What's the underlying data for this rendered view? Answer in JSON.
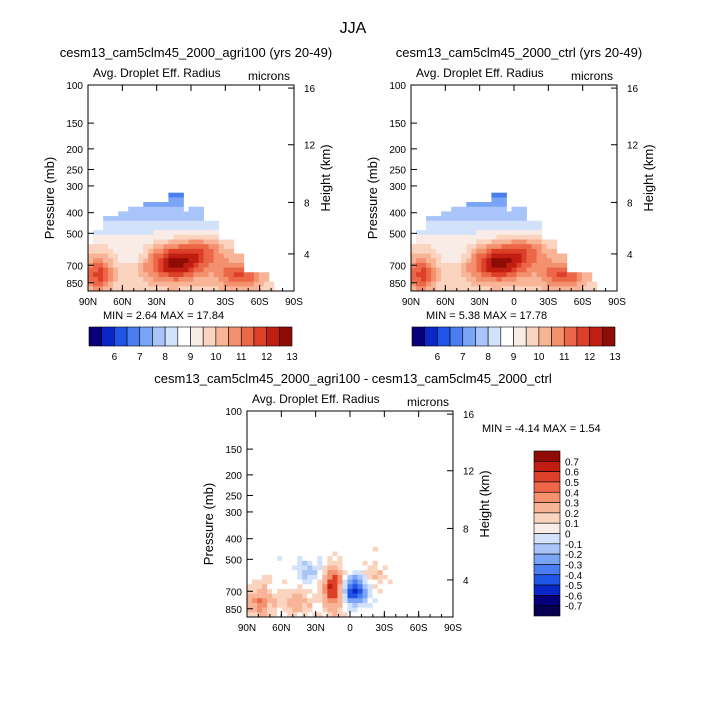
{
  "figure": {
    "title": "JJA"
  },
  "chart_data": [
    {
      "type": "heatmap",
      "title": "cesm13_cam5clm45_2000_agri100 (yrs 20-49)",
      "subtitle_left": "Avg. Droplet Eff. Radius",
      "subtitle_right": "microns",
      "ylabel": "Pressure (mb)",
      "ylabel_right": "Height (km)",
      "xticks": [
        "90N",
        "60N",
        "30N",
        "0",
        "30S",
        "60S",
        "90S"
      ],
      "yticks": [
        "100",
        "150",
        "200",
        "250",
        "300",
        "400",
        "500",
        "700",
        "850"
      ],
      "yticks_right": [
        "16",
        "12",
        "8",
        "4"
      ],
      "min_label": "MIN =",
      "min_value": "2.64",
      "max_label": "MAX =",
      "max_value": "17.84",
      "colorbar_labels": [
        "6",
        "7",
        "8",
        "9",
        "10",
        "11",
        "12",
        "13"
      ],
      "field": "positive"
    },
    {
      "type": "heatmap",
      "title": "cesm13_cam5clm45_2000_ctrl (yrs 20-49)",
      "subtitle_left": "Avg. Droplet Eff. Radius",
      "subtitle_right": "microns",
      "ylabel": "Pressure (mb)",
      "ylabel_right": "Height (km)",
      "xticks": [
        "90N",
        "60N",
        "30N",
        "0",
        "30S",
        "60S",
        "90S"
      ],
      "yticks": [
        "100",
        "150",
        "200",
        "250",
        "300",
        "400",
        "500",
        "700",
        "850"
      ],
      "yticks_right": [
        "16",
        "12",
        "8",
        "4"
      ],
      "min_label": "MIN =",
      "min_value": "5.38",
      "max_label": "MAX =",
      "max_value": "17.78",
      "colorbar_labels": [
        "6",
        "7",
        "8",
        "9",
        "10",
        "11",
        "12",
        "13"
      ],
      "field": "positive"
    },
    {
      "type": "heatmap",
      "title": "cesm13_cam5clm45_2000_agri100 - cesm13_cam5clm45_2000_ctrl",
      "subtitle_left": "Avg. Droplet Eff. Radius",
      "subtitle_right": "microns",
      "ylabel": "Pressure (mb)",
      "ylabel_right": "Height (km)",
      "xticks": [
        "90N",
        "60N",
        "30N",
        "0",
        "30S",
        "60S",
        "90S"
      ],
      "yticks": [
        "100",
        "150",
        "200",
        "250",
        "300",
        "400",
        "500",
        "700",
        "850"
      ],
      "yticks_right": [
        "16",
        "12",
        "8",
        "4"
      ],
      "min_label": "MIN =",
      "min_value": "-4.14",
      "max_label": "MAX =",
      "max_value": "1.54",
      "colorbar_labels": [
        "0.7",
        "0.6",
        "0.5",
        "0.4",
        "0.3",
        "0.2",
        "0.1",
        "0",
        "-0.1",
        "-0.2",
        "-0.3",
        "-0.4",
        "-0.5",
        "-0.6",
        "-0.7"
      ],
      "field": "difference"
    }
  ],
  "colors": {
    "diverging": [
      "#08007a",
      "#0a28c8",
      "#1f55e6",
      "#4a7ef0",
      "#7aa4f5",
      "#a9c4f8",
      "#d3e2fb",
      "#f9ece6",
      "#fbd4c0",
      "#f8b496",
      "#f3906e",
      "#ec6748",
      "#dc4028",
      "#c01e12",
      "#8e0c05"
    ],
    "colorbar_top": [
      "#08007a",
      "#0a28c8",
      "#1f55e6",
      "#4a7ef0",
      "#7aa4f5",
      "#a9c4f8",
      "#d3e2fb",
      "#ffffff",
      "#f9ece6",
      "#fbd4c0",
      "#f8b496",
      "#f3906e",
      "#ec6748",
      "#dc4028",
      "#c01e12",
      "#8e0c05"
    ]
  }
}
